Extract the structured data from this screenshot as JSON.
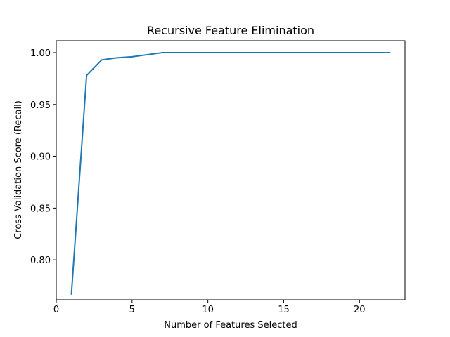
{
  "chart_data": {
    "type": "line",
    "title": "Recursive Feature Elimination",
    "xlabel": "Number of Features Selected",
    "ylabel": "Cross Validation Score (Recall)",
    "xlim": [
      0,
      23
    ],
    "ylim": [
      0.7615,
      1.0115
    ],
    "xticks": [
      0,
      5,
      10,
      15,
      20
    ],
    "yticks": [
      0.8,
      0.85,
      0.9,
      0.95,
      1.0
    ],
    "ytick_labels": [
      "0.80",
      "0.85",
      "0.90",
      "0.95",
      "1.00"
    ],
    "grid": false,
    "series": [
      {
        "color": "#1f77b4",
        "x": [
          1,
          2,
          3,
          4,
          5,
          6,
          7,
          8,
          9,
          10,
          11,
          12,
          13,
          14,
          15,
          16,
          17,
          18,
          19,
          20,
          21,
          22
        ],
        "y": [
          0.767,
          0.978,
          0.993,
          0.995,
          0.996,
          0.998,
          1.0,
          1.0,
          1.0,
          1.0,
          1.0,
          1.0,
          1.0,
          1.0,
          1.0,
          1.0,
          1.0,
          1.0,
          1.0,
          1.0,
          1.0,
          1.0
        ]
      }
    ]
  }
}
